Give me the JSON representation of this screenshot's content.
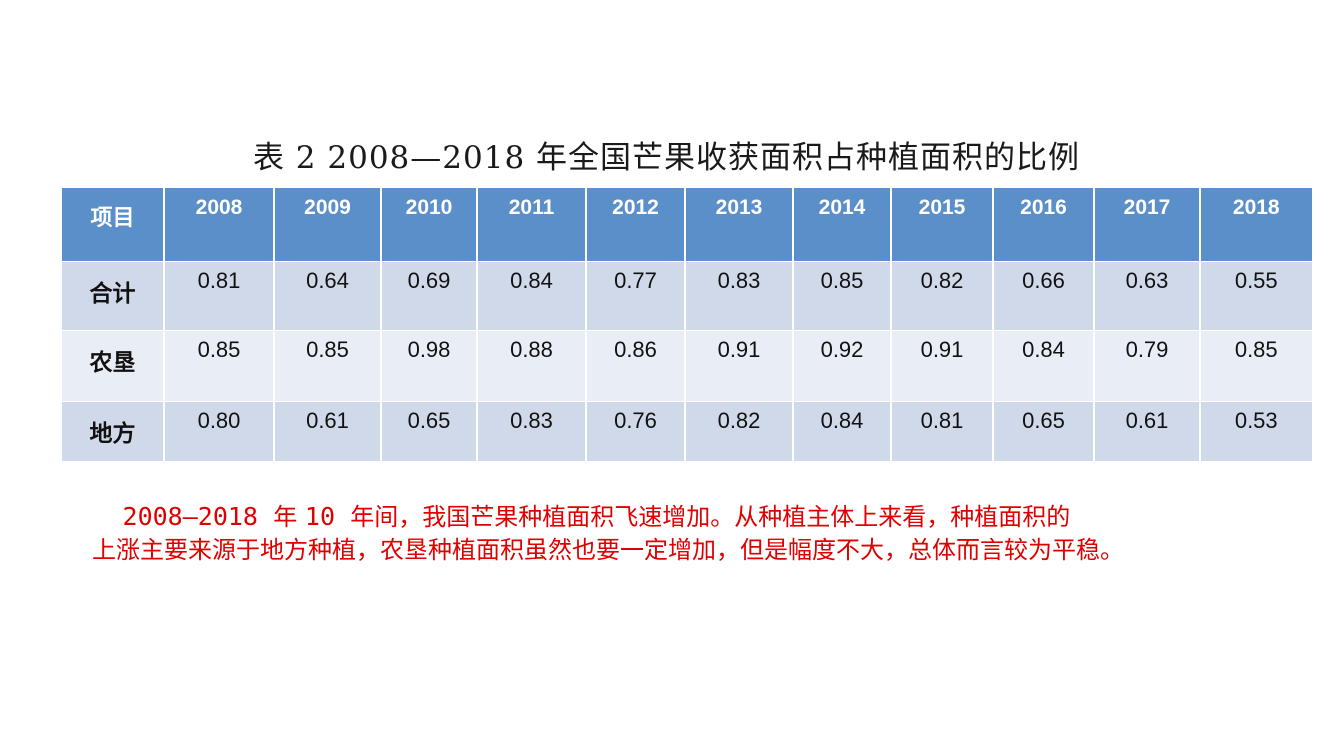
{
  "title": "表 2 2008—2018 年全国芒果收获面积占种植面积的比例",
  "table": {
    "corner_label": "项目",
    "years": [
      "2008",
      "2009",
      "2010",
      "2011",
      "2012",
      "2013",
      "2014",
      "2015",
      "2016",
      "2017",
      "2018"
    ],
    "rows": [
      {
        "label": "合计",
        "values": [
          "0.81",
          "0.64",
          "0.69",
          "0.84",
          "0.77",
          "0.83",
          "0.85",
          "0.82",
          "0.66",
          "0.63",
          "0.55"
        ]
      },
      {
        "label": "农垦",
        "values": [
          "0.85",
          "0.85",
          "0.98",
          "0.88",
          "0.86",
          "0.91",
          "0.92",
          "0.91",
          "0.84",
          "0.79",
          "0.85"
        ]
      },
      {
        "label": "地方",
        "values": [
          "0.80",
          "0.61",
          "0.65",
          "0.83",
          "0.76",
          "0.82",
          "0.84",
          "0.81",
          "0.65",
          "0.61",
          "0.53"
        ]
      }
    ]
  },
  "note": {
    "range": "2008—2018",
    "year_word": "年",
    "count": "10",
    "line1_rest": "年间，我国芒果种植面积飞速增加。从种植主体上来看，种植面积的",
    "line2": "上涨主要来源于地方种植，农垦种植面积虽然也要一定增加，但是幅度不大，总体而言较为平稳。"
  },
  "colors": {
    "header_bg": "#5b8fc9",
    "row_odd_bg": "#d0d9e9",
    "row_even_bg": "#e9edf5",
    "note_text": "#e00000"
  }
}
